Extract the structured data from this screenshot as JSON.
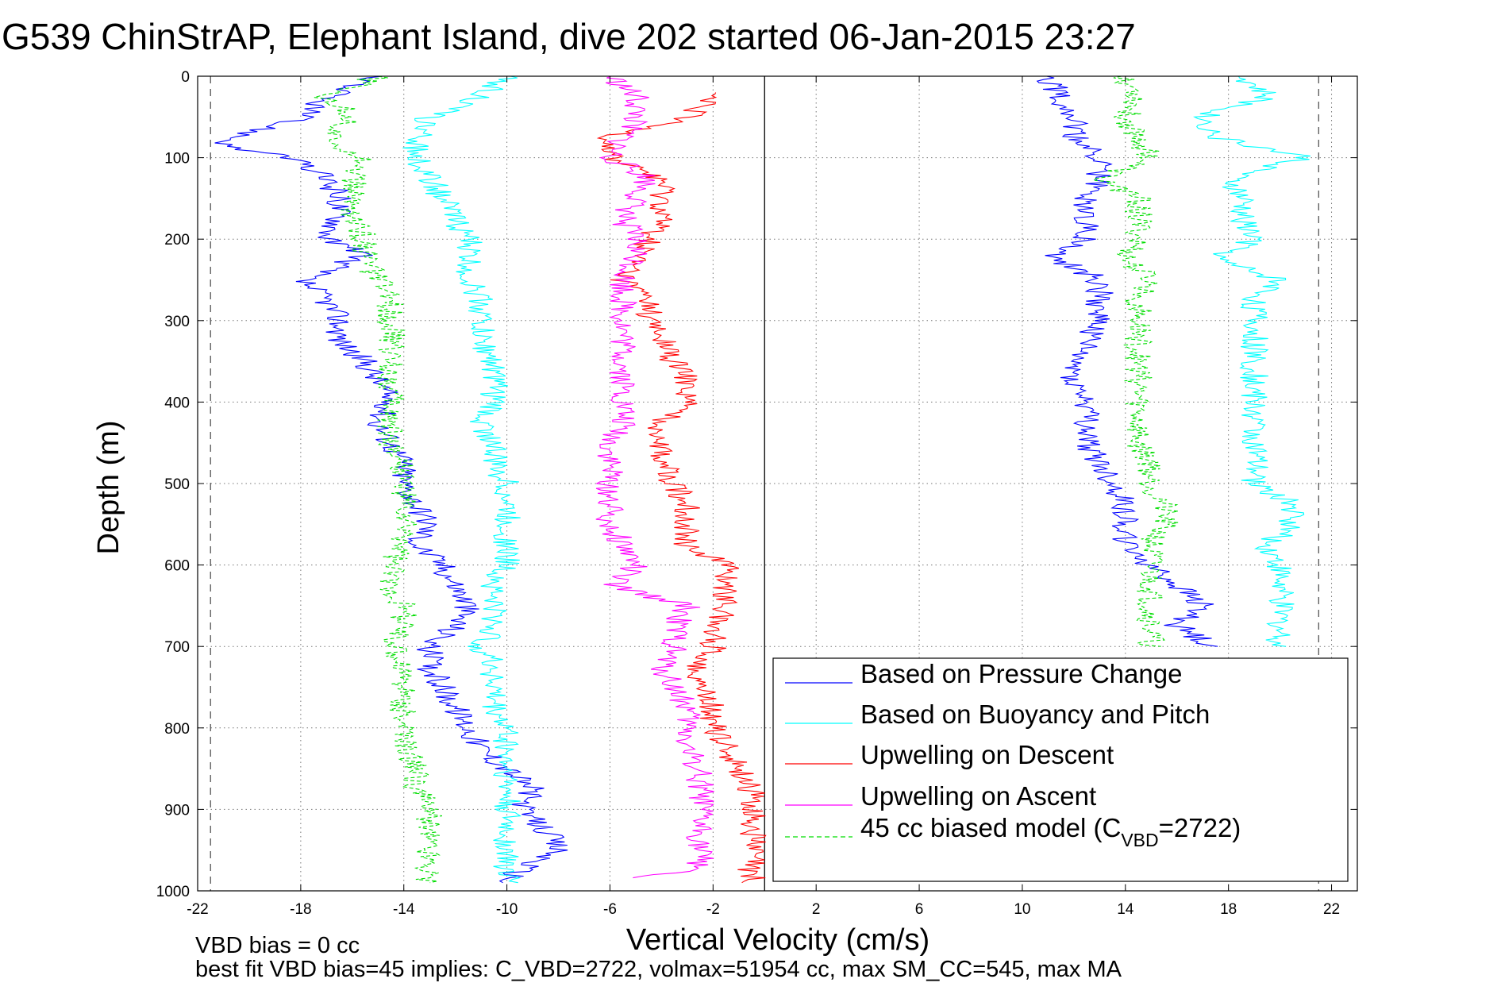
{
  "chart_data": {
    "type": "line",
    "title": "G539 ChinStrAP, Elephant Island, dive 202 started 06-Jan-2015 23:27",
    "xlabel": "Vertical Velocity (cm/s)",
    "ylabel": "Depth (m)",
    "xlim": [
      -22,
      23
    ],
    "ylim": [
      0,
      1000
    ],
    "y_reversed": true,
    "grid": true,
    "x_ticks": [
      -22,
      -18,
      -14,
      -10,
      -6,
      -2,
      2,
      6,
      10,
      14,
      18,
      22
    ],
    "x_tick_labels": [
      "-22",
      "-18",
      "-14",
      "-10",
      "-6",
      "-2",
      "2",
      "6",
      "10",
      "14",
      "18",
      "22"
    ],
    "y_ticks": [
      0,
      100,
      200,
      300,
      400,
      500,
      600,
      700,
      800,
      900,
      1000
    ],
    "y_tick_labels": [
      "0",
      "100",
      "200",
      "300",
      "400",
      "500",
      "600",
      "700",
      "800",
      "900",
      "1000"
    ],
    "reference_lines": [
      {
        "x": 0,
        "style": "solid",
        "color": "#000000"
      },
      {
        "x": -21.5,
        "style": "dashed",
        "color": "#555555"
      },
      {
        "x": 21.5,
        "style": "dashed",
        "color": "#555555"
      }
    ],
    "legend_position": "bottom-right",
    "series": [
      {
        "name": "Based on Pressure Change",
        "color": "#0000ff",
        "dash": "solid",
        "depth": [
          0,
          25,
          50,
          75,
          85,
          100,
          125,
          150,
          175,
          200,
          220,
          250,
          275,
          300,
          325,
          350,
          375,
          400,
          425,
          450,
          475,
          500,
          525,
          550,
          575,
          600,
          625,
          650,
          675,
          700,
          725,
          750,
          775,
          800,
          825,
          850,
          875,
          900,
          925,
          950,
          975,
          990
        ],
        "x": [
          -15,
          -17,
          -18,
          -20.5,
          -21,
          -18.5,
          -17,
          -16.5,
          -16.5,
          -17,
          -15.5,
          -18,
          -17,
          -16.5,
          -16.5,
          -15.5,
          -15,
          -14.5,
          -15,
          -14.5,
          -14,
          -14,
          -13.5,
          -13,
          -13.5,
          -12.5,
          -12,
          -11.5,
          -12,
          -13,
          -13,
          -12.5,
          -12,
          -11.5,
          -11,
          -10,
          -9,
          -9.5,
          -8.5,
          -8,
          -9.5,
          -10
        ]
      },
      {
        "name": "Based on Buoyancy and Pitch",
        "color": "#00ffff",
        "dash": "solid",
        "depth": [
          0,
          25,
          50,
          75,
          100,
          125,
          150,
          175,
          200,
          225,
          250,
          275,
          300,
          325,
          350,
          375,
          400,
          425,
          450,
          475,
          500,
          525,
          550,
          575,
          600,
          625,
          650,
          675,
          700,
          725,
          750,
          775,
          800,
          825,
          850,
          875,
          900,
          925,
          950,
          975,
          990
        ],
        "x": [
          -10,
          -11,
          -13,
          -13.5,
          -13.5,
          -13,
          -12.5,
          -12,
          -11.5,
          -11.5,
          -11.5,
          -11,
          -11,
          -11,
          -10.5,
          -10.5,
          -10.5,
          -11,
          -10.5,
          -10.5,
          -10,
          -10,
          -10,
          -10,
          -10,
          -10.5,
          -10.5,
          -10.5,
          -11,
          -10.5,
          -10.5,
          -10.5,
          -10,
          -10,
          -10,
          -10,
          -10,
          -10,
          -10,
          -10,
          -10
        ]
      },
      {
        "name": "Upwelling on Descent",
        "color": "#ff0000",
        "dash": "solid",
        "depth": [
          20,
          50,
          75,
          100,
          125,
          150,
          175,
          200,
          225,
          250,
          275,
          300,
          325,
          350,
          375,
          400,
          425,
          450,
          475,
          500,
          525,
          550,
          575,
          600,
          625,
          650,
          675,
          700,
          725,
          750,
          775,
          800,
          825,
          850,
          875,
          900,
          925,
          950,
          975,
          990
        ],
        "x": [
          -2,
          -3,
          -6,
          -6,
          -4,
          -4,
          -4,
          -4.5,
          -5,
          -5.5,
          -4.5,
          -4.5,
          -4,
          -3.5,
          -3,
          -3,
          -4,
          -4,
          -4,
          -3.5,
          -3,
          -3,
          -3,
          -1.5,
          -1.5,
          -1.5,
          -2,
          -2,
          -2.5,
          -2.5,
          -2,
          -2,
          -1.5,
          -1,
          -0.5,
          -0.5,
          -0.5,
          -0.5,
          -0.5,
          -0.5
        ]
      },
      {
        "name": "Upwelling on Ascent",
        "color": "#ff00ff",
        "dash": "solid",
        "depth": [
          0,
          25,
          50,
          75,
          100,
          125,
          150,
          175,
          200,
          225,
          250,
          275,
          300,
          325,
          350,
          375,
          400,
          425,
          450,
          475,
          500,
          525,
          550,
          575,
          600,
          625,
          650,
          675,
          700,
          725,
          750,
          775,
          800,
          825,
          850,
          875,
          900,
          925,
          950,
          975,
          985
        ],
        "x": [
          -6,
          -5,
          -5,
          -5.5,
          -6,
          -4.5,
          -5,
          -5.5,
          -5,
          -5,
          -5.5,
          -5.5,
          -5.5,
          -5.5,
          -5.5,
          -5.5,
          -5.5,
          -5.5,
          -6,
          -6,
          -6,
          -6,
          -6,
          -5.5,
          -5,
          -6,
          -3,
          -3.5,
          -3.5,
          -4,
          -3.5,
          -3,
          -3,
          -3,
          -2.5,
          -2.5,
          -2.5,
          -2.5,
          -2.5,
          -2.5,
          -6
        ]
      },
      {
        "name": "45 cc biased model (C",
        "name_subscript": "VBD",
        "name_suffix": "=2722)",
        "color": "#00dd00",
        "dash": "dashed",
        "depth": [
          0,
          25,
          50,
          75,
          100,
          125,
          150,
          175,
          200,
          225,
          250,
          275,
          300,
          325,
          350,
          375,
          400,
          425,
          450,
          475,
          500,
          525,
          550,
          575,
          600,
          625,
          650,
          675,
          700,
          725,
          750,
          775,
          800,
          825,
          850,
          875,
          900,
          925,
          950,
          975,
          990
        ],
        "x": [
          -15,
          -17,
          -16,
          -17,
          -15.5,
          -16,
          -16,
          -16,
          -15.5,
          -15.5,
          -15,
          -14.5,
          -14.5,
          -14.5,
          -14.5,
          -14.5,
          -14.5,
          -14.5,
          -14.5,
          -14,
          -14,
          -14,
          -14,
          -14,
          -14.5,
          -14.5,
          -14,
          -14,
          -14.5,
          -14,
          -14,
          -14,
          -14,
          -14,
          -13.5,
          -13.5,
          -13,
          -13,
          -13,
          -13,
          -13
        ]
      },
      {
        "name": "Based on Pressure Change (ascent)",
        "legend": false,
        "color": "#0000ff",
        "dash": "solid",
        "depth": [
          0,
          25,
          50,
          75,
          100,
          125,
          150,
          175,
          200,
          220,
          250,
          275,
          300,
          325,
          350,
          375,
          400,
          425,
          450,
          475,
          500,
          525,
          550,
          575,
          600,
          625,
          650,
          675,
          700
        ],
        "x": [
          11,
          11.5,
          12,
          12,
          13,
          13,
          12.5,
          12.5,
          12.5,
          11,
          13,
          13,
          13,
          12.5,
          12,
          12,
          12.5,
          12.5,
          12.5,
          13,
          13.5,
          14,
          14,
          14,
          15,
          16,
          17,
          16,
          17.5
        ]
      },
      {
        "name": "Based on Buoyancy and Pitch (ascent)",
        "legend": false,
        "color": "#00ffff",
        "dash": "solid",
        "depth": [
          0,
          25,
          50,
          75,
          100,
          125,
          150,
          175,
          200,
          225,
          250,
          275,
          300,
          325,
          350,
          375,
          400,
          425,
          450,
          475,
          500,
          525,
          550,
          575,
          600,
          625,
          650,
          675,
          700
        ],
        "x": [
          18.5,
          19.5,
          17,
          17.5,
          21,
          18,
          18.5,
          18.5,
          19,
          17.5,
          20,
          19,
          19,
          19,
          19,
          19,
          19,
          19,
          19,
          19,
          19,
          20.5,
          20.5,
          19.5,
          20,
          20,
          20,
          20,
          20
        ]
      },
      {
        "name": "45 cc biased model (ascent)",
        "legend": false,
        "color": "#00dd00",
        "dash": "dashed",
        "depth": [
          0,
          25,
          50,
          75,
          100,
          125,
          150,
          175,
          200,
          225,
          250,
          275,
          300,
          325,
          350,
          375,
          400,
          425,
          450,
          475,
          500,
          525,
          550,
          575,
          600,
          625,
          650,
          675,
          700
        ],
        "x": [
          14,
          14.5,
          14,
          14.5,
          15,
          13,
          14.5,
          14.5,
          14.5,
          14,
          15,
          14.5,
          14.5,
          14.5,
          14.5,
          14.5,
          14.5,
          14.5,
          14.5,
          15,
          15,
          15.5,
          15.5,
          15,
          15,
          15,
          15,
          15,
          15
        ]
      }
    ],
    "annotations": [
      "VBD bias = 0 cc",
      "best fit VBD bias=45 implies: C_VBD=2722, volmax=51954 cc, max SM_CC=545, max MA"
    ]
  }
}
